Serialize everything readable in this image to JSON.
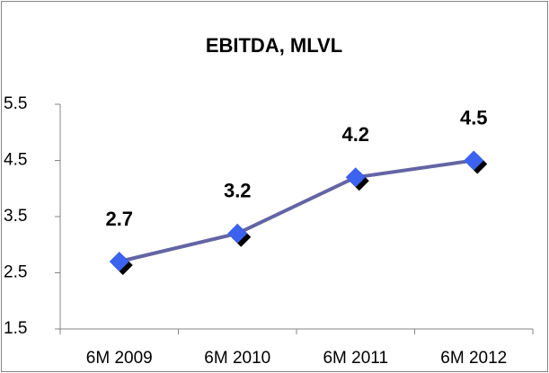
{
  "chart_data": {
    "type": "line",
    "title": "EBITDA, MLVL",
    "categories": [
      "6M 2009",
      "6M 2010",
      "6M 2011",
      "6M 2012"
    ],
    "values": [
      2.7,
      3.2,
      4.2,
      4.5
    ],
    "color": "#6464a4",
    "marker_color": "#3b63f0",
    "ylim": [
      1.5,
      5.5
    ],
    "yticks": [
      1.5,
      2.5,
      3.5,
      4.5,
      5.5
    ],
    "grid": false
  }
}
